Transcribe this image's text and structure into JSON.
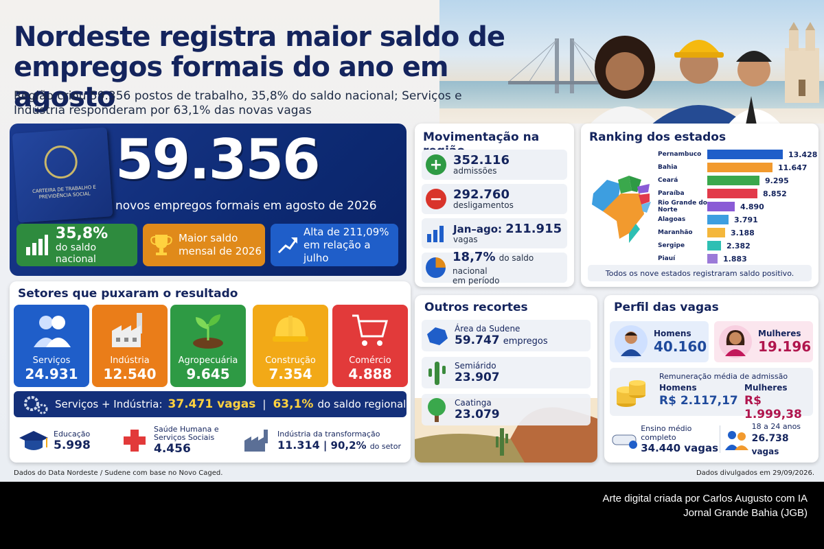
{
  "header": {
    "title": "Nordeste registra maior saldo de empregos formais do ano em agosto",
    "subtitle": "Região criou 59.356 postos de trabalho, 35,8% do saldo nacional; Serviços e Indústria responderam por 63,1% das novas vagas"
  },
  "hero": {
    "passport_text": "CARTEIRA DE TRABALHO E PREVIDÊNCIA SOCIAL",
    "number": "59.356",
    "caption": "novos empregos formais em agosto de 2026",
    "pills": [
      {
        "big": "35,8%",
        "small": "do saldo nacional",
        "color": "#2e8b3e",
        "icon": "bar-chart-icon"
      },
      {
        "big": "",
        "small": "Maior saldo mensal de 2026",
        "color": "#e08a1a",
        "icon": "trophy-icon"
      },
      {
        "big": "",
        "small": "Alta de 211,09% em relação a julho",
        "color": "#1f5ec9",
        "icon": "trend-up-icon"
      }
    ]
  },
  "movimentacao": {
    "title": "Movimentação na região",
    "rows": [
      {
        "value": "352.116",
        "label": "admissões",
        "icon": "plus-icon",
        "color": "#2e9a44"
      },
      {
        "value": "292.760",
        "label": "desligamentos",
        "icon": "minus-icon",
        "color": "#d9342b"
      },
      {
        "value": "211.915",
        "prefix": "Jan–ago:",
        "label": "vagas",
        "icon": "bar-chart-icon",
        "color": "#1f5ec9"
      },
      {
        "value": "18,7%",
        "label": "do saldo nacional",
        "label2": "em período",
        "icon": "pie-chart-icon",
        "color": "#e08a1a"
      }
    ]
  },
  "ranking": {
    "title": "Ranking dos estados",
    "footer": "Todos os nove estados registraram saldo positivo.",
    "states": [
      {
        "name": "Pernambuco",
        "value": 13428,
        "label": "13.428",
        "color": "#1f5ec9"
      },
      {
        "name": "Bahia",
        "value": 11647,
        "label": "11.647",
        "color": "#f29a2e"
      },
      {
        "name": "Ceará",
        "value": 9295,
        "label": "9.295",
        "color": "#3aa84c"
      },
      {
        "name": "Paraíba",
        "value": 8852,
        "label": "8.852",
        "color": "#e23a4a"
      },
      {
        "name": "Rio Grande do Norte",
        "value": 4890,
        "label": "4.890",
        "color": "#8a5bd6"
      },
      {
        "name": "Alagoas",
        "value": 3791,
        "label": "3.791",
        "color": "#3d9ee0"
      },
      {
        "name": "Maranhão",
        "value": 3188,
        "label": "3.188",
        "color": "#f4b73c"
      },
      {
        "name": "Sergipe",
        "value": 2382,
        "label": "2.382",
        "color": "#2ebfb3"
      },
      {
        "name": "Piauí",
        "value": 1883,
        "label": "1.883",
        "color": "#9b7ad8"
      }
    ]
  },
  "setores": {
    "title": "Setores que puxaram o resultado",
    "items": [
      {
        "name": "Serviços",
        "value": "24.931",
        "color": "#1f5ec9",
        "icon": "people-icon"
      },
      {
        "name": "Indústria",
        "value": "12.540",
        "color": "#ea7d19",
        "icon": "factory-icon"
      },
      {
        "name": "Agropecuária",
        "value": "9.645",
        "color": "#2e9a44",
        "icon": "plant-icon"
      },
      {
        "name": "Construção",
        "value": "7.354",
        "color": "#f2a917",
        "icon": "hardhat-icon"
      },
      {
        "name": "Comércio",
        "value": "4.888",
        "color": "#e23a3a",
        "icon": "cart-icon"
      }
    ],
    "band_label": "Serviços + Indústria:",
    "band_value": "37.471 vagas",
    "band_pct": "63,1%",
    "band_suffix": "do saldo regional",
    "subs": [
      {
        "name": "Educação",
        "value": "5.998",
        "icon": "graduation-cap-icon"
      },
      {
        "name": "Saúde Humana e Serviços Sociais",
        "value": "4.456",
        "icon": "health-cross-icon"
      },
      {
        "name": "Indústria da transformação",
        "value": "11.314",
        "extra": "| 90,2%",
        "extra2": "do setor",
        "icon": "factory-icon"
      }
    ]
  },
  "outros": {
    "title": "Outros recortes",
    "rows": [
      {
        "name": "Área da Sudene",
        "value": "59.747",
        "unit": "empregos",
        "icon": "map-icon"
      },
      {
        "name": "Semiárido",
        "value": "23.907",
        "icon": "cactus-icon"
      },
      {
        "name": "Caatinga",
        "value": "23.079",
        "icon": "tree-icon"
      }
    ]
  },
  "perfil": {
    "title": "Perfil das vagas",
    "homens_label": "Homens",
    "homens_value": "40.160",
    "mulheres_label": "Mulheres",
    "mulheres_value": "19.196",
    "rem_title": "Remuneração média de admissão",
    "rem_h_label": "Homens",
    "rem_h_value": "R$ 2.117,17",
    "rem_m_label": "Mulheres",
    "rem_m_value": "R$ 1.999,38",
    "edu_label": "Ensino médio completo",
    "edu_value": "34.440 vagas",
    "age_label": "18 a 24 anos",
    "age_value": "26.738",
    "age_unit": "vagas"
  },
  "footer": {
    "source": "Dados do Data Nordeste / Sudene com base no Novo Caged.",
    "date": "Dados divulgados em 29/09/2026."
  },
  "credit": {
    "line1": "Arte digital criada por Carlos Augusto com IA",
    "line2": "Jornal Grande Bahia (JGB)"
  }
}
